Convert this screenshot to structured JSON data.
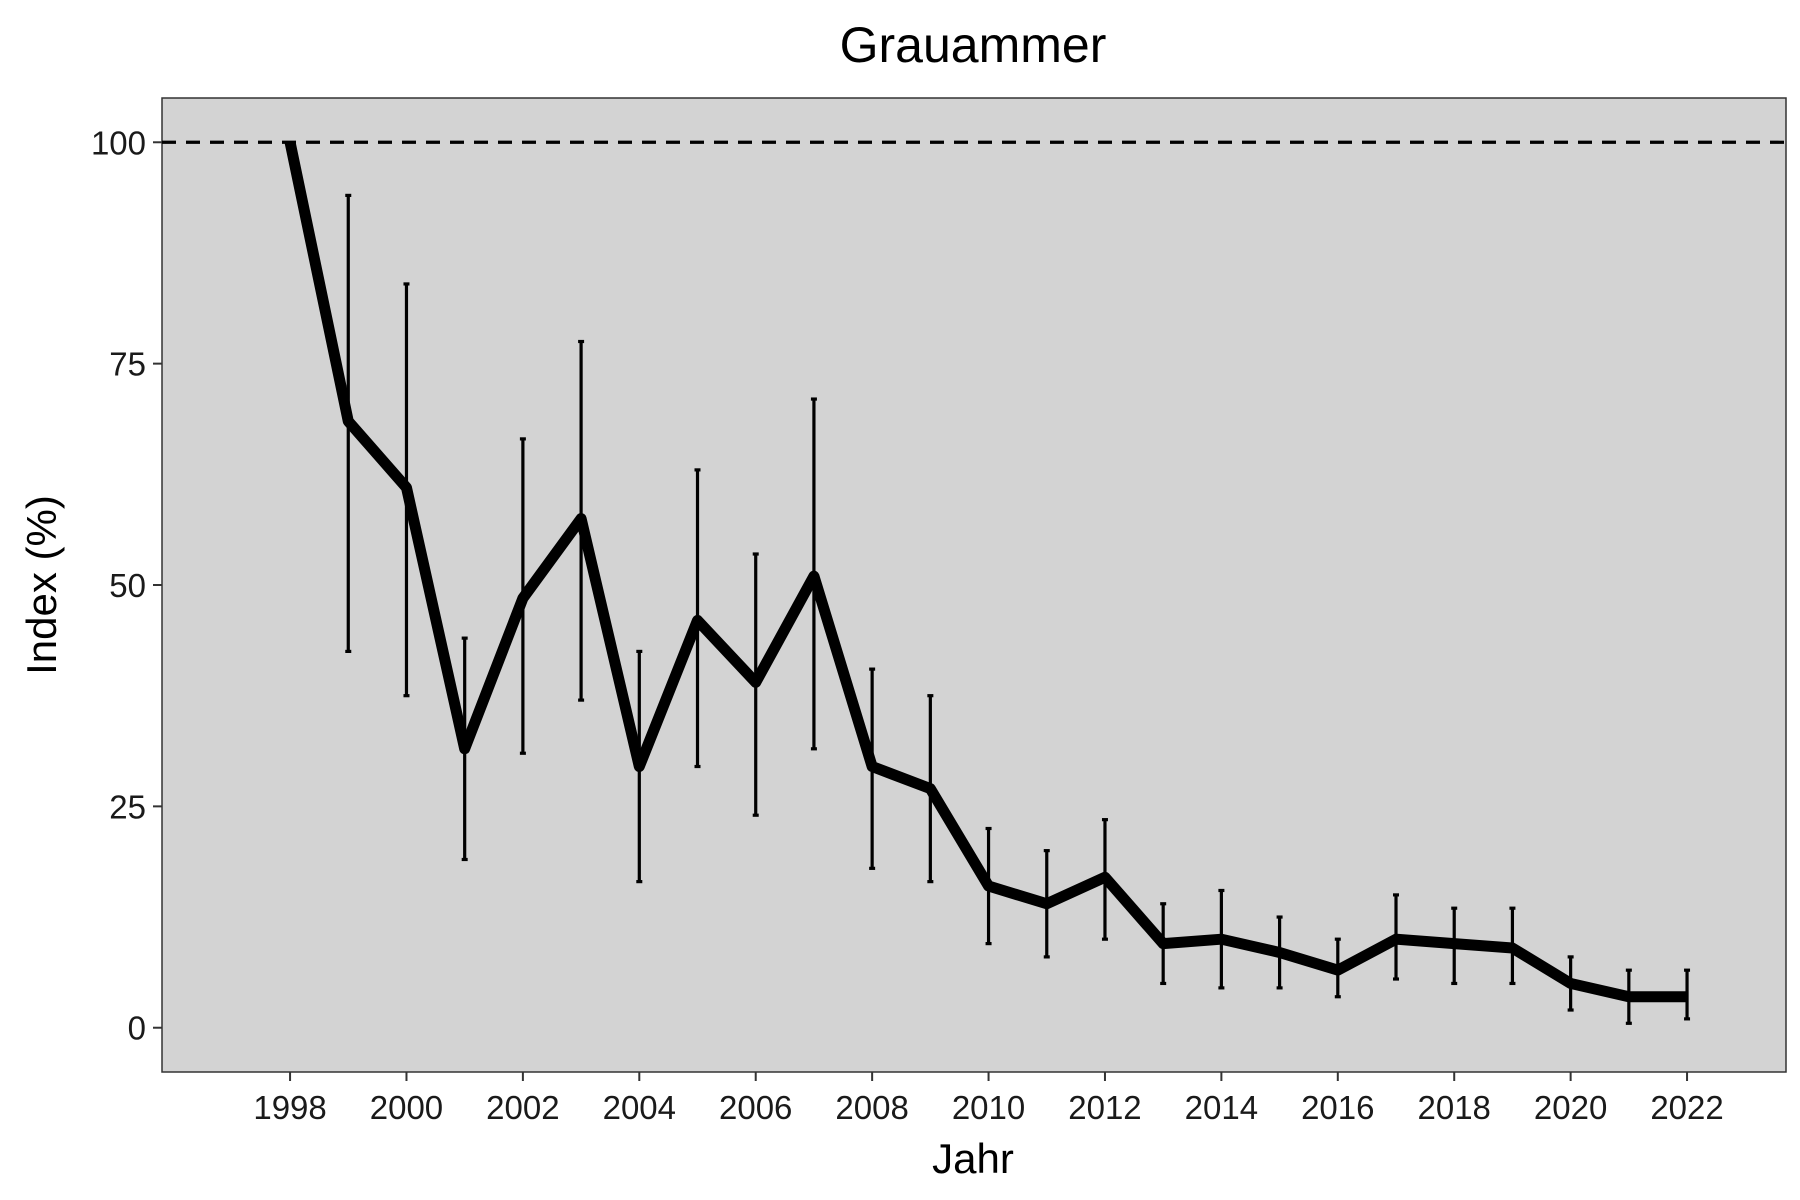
{
  "chart_data": {
    "type": "line",
    "title": "Grauammer",
    "xlabel": "Jahr",
    "ylabel": "Index (%)",
    "xlim": [
      1995.8,
      2023.7
    ],
    "ylim": [
      -5,
      105
    ],
    "xticks": [
      "1998",
      "2000",
      "2002",
      "2004",
      "2006",
      "2008",
      "2010",
      "2012",
      "2014",
      "2016",
      "2018",
      "2020",
      "2022"
    ],
    "yticks": [
      "0",
      "25",
      "50",
      "75",
      "100"
    ],
    "reference_line": {
      "y": 100,
      "style": "dashed"
    },
    "panel_background": "#d3d3d3",
    "line_color": "#000000",
    "grid": false,
    "series": [
      {
        "x": [
          1998,
          1999,
          2000,
          2001,
          2002,
          2003,
          2004,
          2005,
          2006,
          2007,
          2008,
          2009,
          2010,
          2011,
          2012,
          2013,
          2014,
          2015,
          2016,
          2017,
          2018,
          2019,
          2020,
          2021,
          2022
        ],
        "values": [
          100,
          68.5,
          61,
          31.5,
          48.5,
          57.5,
          29.5,
          46,
          39,
          51,
          29.5,
          27,
          16,
          14,
          17,
          9.5,
          10,
          8.5,
          6.5,
          10,
          9.5,
          9,
          5,
          3.5,
          3.5
        ],
        "lower": [
          null,
          42.5,
          37.5,
          19,
          31,
          37,
          16.5,
          29.5,
          24,
          31.5,
          18,
          16.5,
          9.5,
          8,
          10,
          5,
          4.5,
          4.5,
          3.5,
          5.5,
          5,
          5,
          2,
          0.5,
          1
        ],
        "upper": [
          null,
          94,
          84,
          44,
          66.5,
          77.5,
          42.5,
          63,
          53.5,
          71,
          40.5,
          37.5,
          22.5,
          20,
          23.5,
          14,
          15.5,
          12.5,
          10,
          15,
          13.5,
          13.5,
          8,
          6.5,
          6.5
        ]
      }
    ]
  }
}
